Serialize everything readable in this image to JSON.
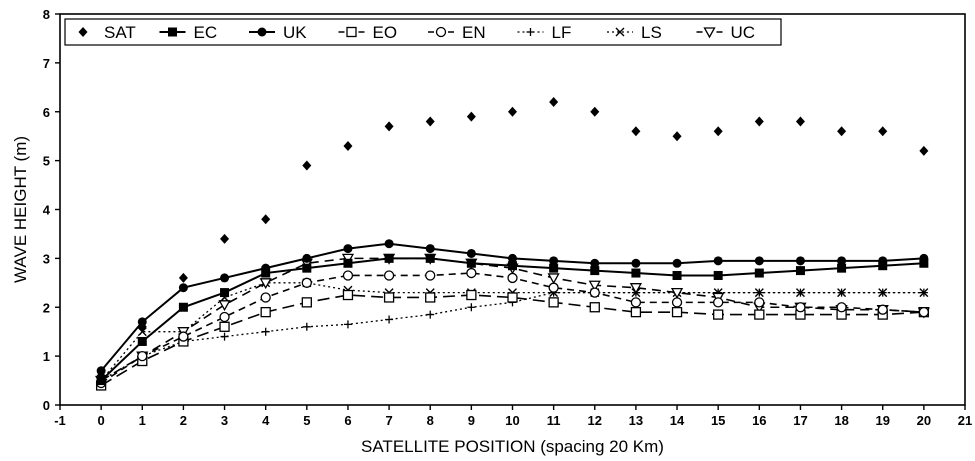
{
  "chart_data": {
    "type": "line",
    "xlabel": "SATELLITE POSITION (spacing 20 Km)",
    "ylabel": "WAVE HEIGHT (m)",
    "xlim": [
      -1,
      21
    ],
    "ylim": [
      0,
      8
    ],
    "xticks": [
      -1,
      0,
      1,
      2,
      3,
      4,
      5,
      6,
      7,
      8,
      9,
      10,
      11,
      12,
      13,
      14,
      15,
      16,
      17,
      18,
      19,
      20,
      21
    ],
    "yticks": [
      0,
      1,
      2,
      3,
      4,
      5,
      6,
      7,
      8
    ],
    "grid": false,
    "legend_position": "top-left",
    "x": [
      0,
      1,
      2,
      3,
      4,
      5,
      6,
      7,
      8,
      9,
      10,
      11,
      12,
      13,
      14,
      15,
      16,
      17,
      18,
      19,
      20
    ],
    "series": [
      {
        "name": "SAT",
        "marker": "diamond",
        "line": "none",
        "values": [
          0.6,
          1.6,
          2.6,
          3.4,
          3.8,
          4.9,
          5.3,
          5.7,
          5.8,
          5.9,
          6.0,
          6.2,
          6.0,
          5.6,
          5.5,
          5.6,
          5.8,
          5.8,
          5.6,
          5.6,
          5.2
        ]
      },
      {
        "name": "EC",
        "marker": "filled-square",
        "line": "solid",
        "values": [
          0.5,
          1.3,
          2.0,
          2.3,
          2.7,
          2.8,
          2.9,
          3.0,
          3.0,
          2.9,
          2.85,
          2.8,
          2.75,
          2.7,
          2.65,
          2.65,
          2.7,
          2.75,
          2.8,
          2.85,
          2.9
        ]
      },
      {
        "name": "UK",
        "marker": "filled-circle",
        "line": "solid",
        "values": [
          0.7,
          1.7,
          2.4,
          2.6,
          2.8,
          3.0,
          3.2,
          3.3,
          3.2,
          3.1,
          3.0,
          2.95,
          2.9,
          2.9,
          2.9,
          2.95,
          2.95,
          2.95,
          2.95,
          2.95,
          3.0
        ]
      },
      {
        "name": "EO",
        "marker": "open-square",
        "line": "long-dash",
        "values": [
          0.4,
          0.9,
          1.3,
          1.6,
          1.9,
          2.1,
          2.25,
          2.2,
          2.2,
          2.25,
          2.2,
          2.1,
          2.0,
          1.9,
          1.9,
          1.85,
          1.85,
          1.85,
          1.85,
          1.85,
          1.9
        ]
      },
      {
        "name": "EN",
        "marker": "open-circle",
        "line": "short-dash",
        "values": [
          0.45,
          1.0,
          1.4,
          1.8,
          2.2,
          2.5,
          2.65,
          2.65,
          2.65,
          2.7,
          2.6,
          2.4,
          2.3,
          2.1,
          2.1,
          2.1,
          2.1,
          2.0,
          2.0,
          1.95,
          1.9
        ]
      },
      {
        "name": "LF",
        "marker": "plus",
        "line": "dotted",
        "values": [
          0.5,
          1.0,
          1.3,
          1.4,
          1.5,
          1.6,
          1.65,
          1.75,
          1.85,
          2.0,
          2.1,
          2.3,
          2.3,
          2.3,
          2.3,
          2.3,
          2.3,
          2.3,
          2.3,
          2.3,
          2.3
        ]
      },
      {
        "name": "LS",
        "marker": "cross",
        "line": "dotted",
        "values": [
          0.5,
          1.5,
          1.5,
          2.2,
          2.5,
          2.5,
          2.35,
          2.3,
          2.3,
          2.3,
          2.3,
          2.3,
          2.3,
          2.3,
          2.3,
          2.3,
          2.3,
          2.3,
          2.3,
          2.3,
          2.3
        ]
      },
      {
        "name": "UC",
        "marker": "open-triangle-down",
        "line": "dashed",
        "values": [
          0.5,
          1.0,
          1.5,
          2.05,
          2.5,
          2.9,
          3.0,
          3.0,
          3.0,
          2.9,
          2.8,
          2.6,
          2.45,
          2.4,
          2.3,
          2.2,
          2.0,
          2.0,
          1.95,
          1.95,
          1.9
        ]
      }
    ]
  }
}
